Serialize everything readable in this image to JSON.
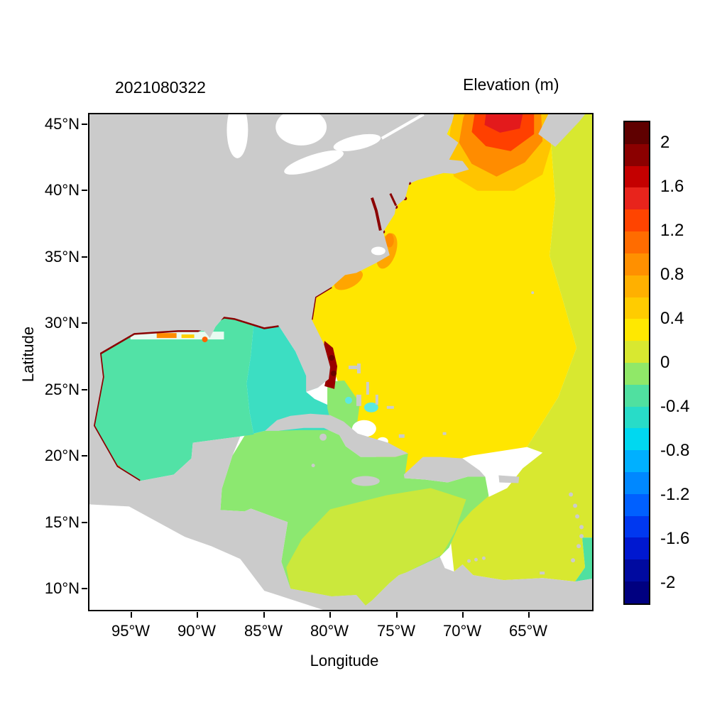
{
  "titles": {
    "timestamp": "2021080322",
    "colorbar_title": "Elevation (m)"
  },
  "axes": {
    "x_label": "Longitude",
    "y_label": "Latitude",
    "x_ticks": [
      "95°W",
      "90°W",
      "85°W",
      "80°W",
      "75°W",
      "70°W",
      "65°W"
    ],
    "y_ticks": [
      "45°N",
      "40°N",
      "35°N",
      "30°N",
      "25°N",
      "20°N",
      "15°N",
      "10°N"
    ]
  },
  "colorbar": {
    "labels": [
      "2",
      "1.6",
      "1.2",
      "0.8",
      "0.4",
      "0",
      "-0.4",
      "-0.8",
      "-1.2",
      "-1.6",
      "-2"
    ],
    "colors": [
      "#5f0000",
      "#8b0000",
      "#c40000",
      "#e8241c",
      "#ff4400",
      "#ff6c00",
      "#ff9000",
      "#ffb000",
      "#ffcc00",
      "#ffe800",
      "#d8e830",
      "#90e868",
      "#50e0a0",
      "#28dcc8",
      "#00d8f0",
      "#00b0ff",
      "#0088ff",
      "#0060ff",
      "#0038f0",
      "#0018d0",
      "#000aa0",
      "#000080"
    ]
  },
  "colors": {
    "background": "#ffffff",
    "land": "#cbcbcb",
    "gulf_west": "#52e2a6",
    "gulf_east": "#3cdec2",
    "caribbean": "#8ce870",
    "caribbean_south": "#cbe83c",
    "atlantic": "#ffe600",
    "atlantic_east": "#d8e830",
    "maine_amber": "#ffc400",
    "maine_orange": "#ff8c00",
    "maine_red": "#ff4000",
    "maine_core": "#e31a1c",
    "coastal_anomaly": "#8b0000",
    "florida_blob": "#990000",
    "carolina_patch": "#ffa500",
    "shelf_pale": "#e9fbf1",
    "bank_white": "#ffffff",
    "bank_cyan": "#5ce8e0",
    "teal_strip": "#50e0a0",
    "lake_white": "#ffffff"
  },
  "chart_data": {
    "type": "heatmap",
    "title": "Elevation (m)",
    "timestamp": "2021080322",
    "xlabel": "Longitude",
    "ylabel": "Latitude",
    "x_range_deg_west": [
      98.2,
      60.2
    ],
    "y_range_deg_north": [
      8.4,
      45.8
    ],
    "x_ticks": [
      "95°W",
      "90°W",
      "85°W",
      "80°W",
      "75°W",
      "70°W",
      "65°W"
    ],
    "y_ticks": [
      "45°N",
      "40°N",
      "35°N",
      "30°N",
      "25°N",
      "20°N",
      "15°N",
      "10°N"
    ],
    "grid": false,
    "legend_position": "right-colorbar",
    "colorbar": {
      "label": "Elevation (m)",
      "min": -2.2,
      "max": 2.2,
      "step": 0.2,
      "tick_values": [
        2,
        1.6,
        1.2,
        0.8,
        0.4,
        0,
        -0.4,
        -0.8,
        -1.2,
        -1.6,
        -2
      ]
    },
    "regions": [
      {
        "name": "Gulf of Mexico (western basin)",
        "approx_elevation_m": -0.3
      },
      {
        "name": "Eastern Gulf / Florida Straits",
        "approx_elevation_m": -0.45
      },
      {
        "name": "Western Atlantic interior",
        "approx_elevation_m": 0.3
      },
      {
        "name": "Eastern Atlantic margin (east of ~63W)",
        "approx_elevation_m": 0.1
      },
      {
        "name": "Western / central Caribbean",
        "approx_elevation_m": -0.1
      },
      {
        "name": "Southern and eastern Caribbean",
        "approx_elevation_m": 0.1
      },
      {
        "name": "Gulf of Maine / Scotian Shelf bloom",
        "approx_elevation_m": 1.4
      },
      {
        "name": "Carolina coastal shelf patch",
        "approx_elevation_m": 0.7
      },
      {
        "name": "Northern Gulf coast fringe",
        "approx_elevation_m": 2.0
      },
      {
        "name": "Southeast Florida coastal blob",
        "approx_elevation_m": 2.0
      },
      {
        "name": "Bahama banks",
        "approx_elevation_m": -0.6
      },
      {
        "name": "Land",
        "approx_elevation_m": null
      }
    ]
  }
}
